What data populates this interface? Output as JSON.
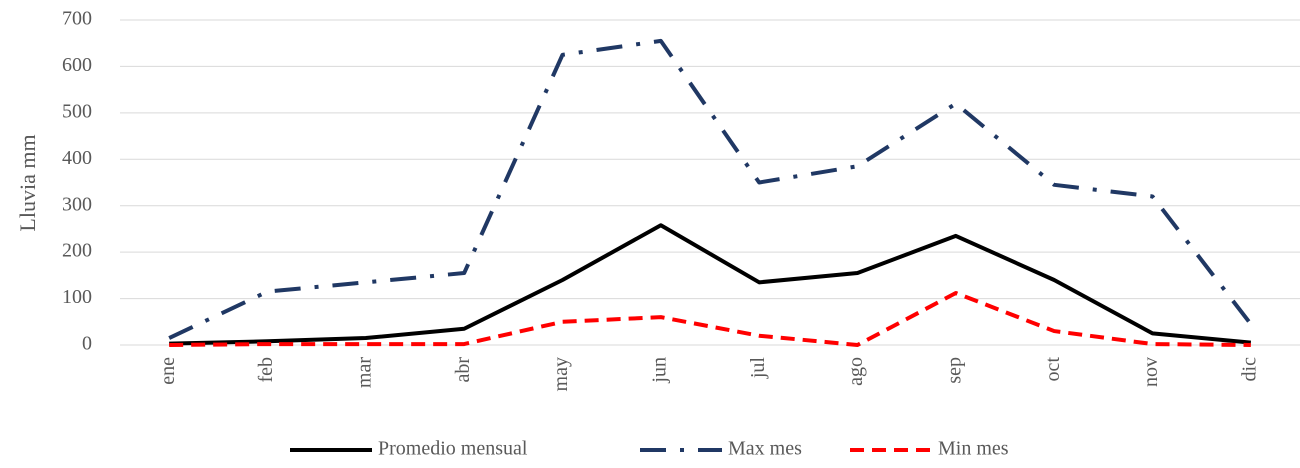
{
  "chart_data": {
    "type": "line",
    "y_label": "Lluvia mm",
    "categories": [
      "ene",
      "feb",
      "mar",
      "abr",
      "may",
      "jun",
      "jul",
      "ago",
      "sep",
      "oct",
      "nov",
      "dic"
    ],
    "series": [
      {
        "name": "Promedio mensual",
        "color": "#000000",
        "dash": "solid",
        "values": [
          3,
          8,
          15,
          35,
          140,
          258,
          135,
          155,
          235,
          140,
          25,
          5
        ]
      },
      {
        "name": "Max mes",
        "color": "#203864",
        "dash": "dash-dot",
        "values": [
          15,
          115,
          135,
          155,
          625,
          655,
          350,
          385,
          520,
          345,
          320,
          45
        ]
      },
      {
        "name": "Min mes",
        "color": "#ff0000",
        "dash": "dash",
        "values": [
          0,
          2,
          2,
          2,
          50,
          60,
          20,
          0,
          112,
          30,
          2,
          0
        ]
      }
    ],
    "ylim": [
      0,
      700
    ],
    "yticks": [
      0,
      100,
      200,
      300,
      400,
      500,
      600,
      700
    ],
    "grid": true,
    "legend": "bottom"
  }
}
